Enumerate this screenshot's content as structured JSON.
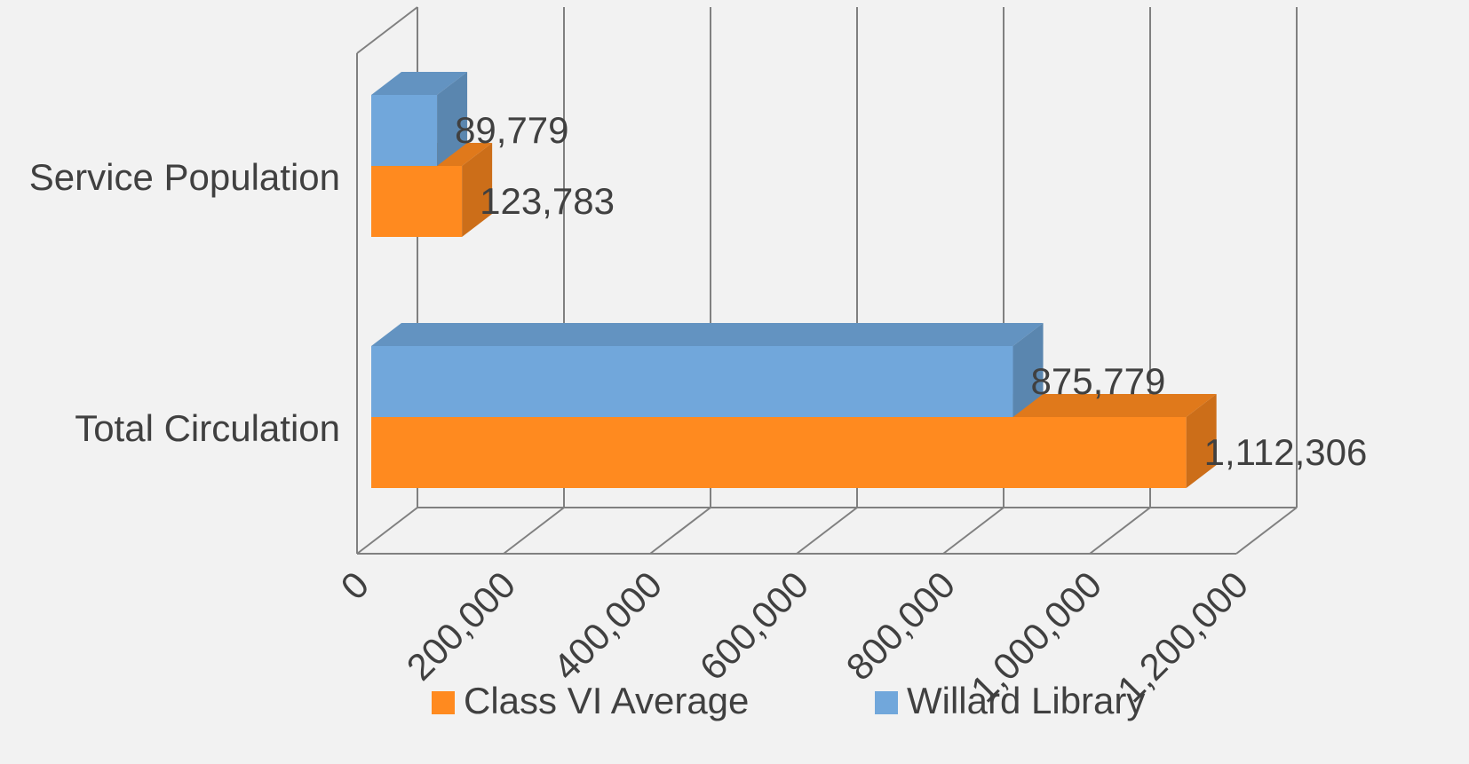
{
  "chart_data": {
    "type": "bar3d-horizontal",
    "categories": [
      "Service Population",
      "Total Circulation"
    ],
    "series": [
      {
        "name": "Class VI Average",
        "color": "#ff8a1f",
        "values": [
          123783,
          1112306
        ],
        "value_labels": [
          "123,783",
          "1,112,306"
        ]
      },
      {
        "name": "Willard Library",
        "color": "#71a7db",
        "values": [
          89779,
          875779
        ],
        "value_labels": [
          "89,779",
          "875,779"
        ]
      }
    ],
    "xlim": [
      0,
      1200000
    ],
    "xticks": [
      0,
      {
        "value": 200000,
        "label": "200,000"
      },
      {
        "value": 400000,
        "label": "400,000"
      },
      {
        "value": 600000,
        "label": "600,000"
      },
      {
        "value": 800000,
        "label": "800,000"
      },
      {
        "value": 1000000,
        "label": "1,000,000"
      },
      {
        "value": 1200000,
        "label": "1,200,000"
      }
    ],
    "grid": true,
    "legend": "bottom"
  }
}
